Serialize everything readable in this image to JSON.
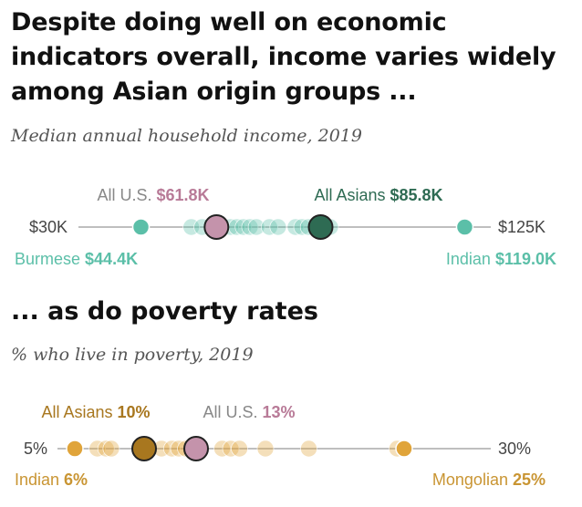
{
  "headline": "Despite doing well on economic indicators overall, income varies widely among Asian origin groups ...",
  "section2_title": "... as do poverty rates",
  "colors": {
    "income": "#5bbfa8",
    "income_asian": "#2e6b53",
    "us": "#c493ab",
    "us_text": "#b87a97",
    "poverty": "#e0a43a",
    "poverty_text": "#c99533",
    "poverty_asian": "#a8771f",
    "axis": "#999999"
  },
  "chart_data": [
    {
      "type": "scatter",
      "subtitle": "Median annual household income, 2019",
      "axis_min_label": "$30K",
      "axis_max_label": "$125K",
      "xlim": [
        30,
        125
      ],
      "unit": "thousands of dollars",
      "us_label": "All U.S.",
      "us_value_label": "$61.8K",
      "us_value": 61.8,
      "asian_label": "All Asians",
      "asian_value_label": "$85.8K",
      "asian_value": 85.8,
      "min_label": "Burmese",
      "min_value_label": "$44.4K",
      "min_value": 44.4,
      "max_label": "Indian",
      "max_value_label": "$119.0K",
      "max_value": 119.0,
      "groups": [
        44.4,
        56.0,
        58.5,
        65.0,
        66.5,
        68.0,
        69.5,
        71.0,
        74.0,
        76.0,
        80.0,
        81.5,
        83.0,
        85.0,
        88.0,
        119.0
      ]
    },
    {
      "type": "scatter",
      "subtitle": "% who live in poverty, 2019",
      "axis_min_label": "5%",
      "axis_max_label": "30%",
      "xlim": [
        5,
        30
      ],
      "unit": "percent",
      "us_label": "All U.S.",
      "us_value_label": "13%",
      "us_value": 13,
      "asian_label": "All Asians",
      "asian_value_label": "10%",
      "asian_value": 10,
      "min_label": "Indian",
      "min_value_label": "6%",
      "min_value": 6,
      "max_label": "Mongolian",
      "max_value_label": "25%",
      "max_value": 25,
      "groups": [
        6.0,
        7.3,
        7.8,
        8.1,
        11.0,
        11.6,
        12.0,
        12.4,
        14.5,
        15.0,
        15.5,
        17.0,
        19.5,
        24.6,
        25.0
      ]
    }
  ]
}
